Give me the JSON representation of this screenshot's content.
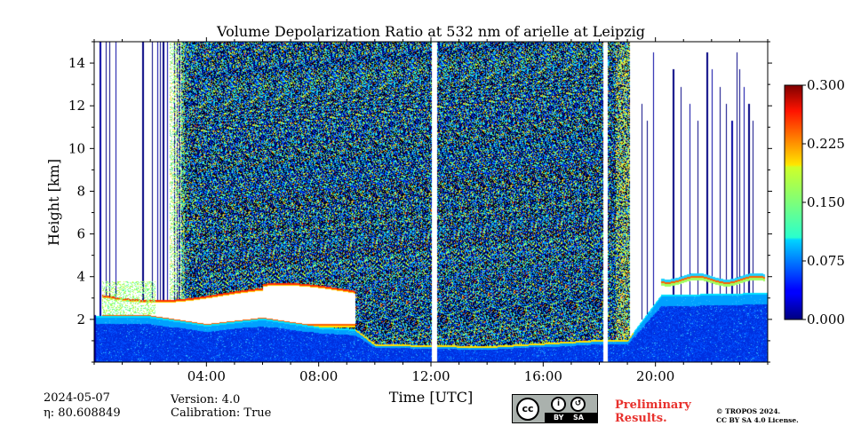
{
  "chart_data": {
    "type": "heatmap",
    "title": "Volume Depolarization Ratio at 532 nm of arielle at Leipzig",
    "xlabel": "Time [UTC]",
    "ylabel": "Height [km]",
    "xlim_hours": [
      0,
      24
    ],
    "ylim_km": [
      0,
      15
    ],
    "x_ticks": [
      {
        "value": 4,
        "label": "04:00"
      },
      {
        "value": 8,
        "label": "08:00"
      },
      {
        "value": 12,
        "label": "12:00"
      },
      {
        "value": 16,
        "label": "16:00"
      },
      {
        "value": 20,
        "label": "20:00"
      }
    ],
    "y_ticks": [
      {
        "value": 2,
        "label": "2"
      },
      {
        "value": 4,
        "label": "4"
      },
      {
        "value": 6,
        "label": "6"
      },
      {
        "value": 8,
        "label": "8"
      },
      {
        "value": 10,
        "label": "10"
      },
      {
        "value": 12,
        "label": "12"
      },
      {
        "value": 14,
        "label": "14"
      }
    ],
    "colorbar": {
      "colormap": "jet",
      "range": [
        0.0,
        0.3
      ],
      "ticks": [
        {
          "value": 0.0,
          "label": "0.000"
        },
        {
          "value": 0.075,
          "label": "0.075"
        },
        {
          "value": 0.15,
          "label": "0.150"
        },
        {
          "value": 0.225,
          "label": "0.225"
        },
        {
          "value": 0.3,
          "label": "0.300"
        }
      ]
    },
    "data_gaps_hours": [
      [
        12.05,
        12.2
      ],
      [
        18.15,
        18.3
      ]
    ],
    "noise_region": {
      "start_hour": 3.1,
      "end_hour": 19.1,
      "description_color": "mixed dark-blue/cyan/yellow speckle"
    },
    "boundary_layer": [
      {
        "hour": 0.3,
        "top_km": 2.1,
        "depol": 0.04
      },
      {
        "hour": 2.0,
        "top_km": 2.1,
        "depol": 0.04
      },
      {
        "hour": 4.0,
        "top_km": 1.7,
        "depol": 0.04
      },
      {
        "hour": 6.0,
        "top_km": 2.0,
        "depol": 0.04
      },
      {
        "hour": 8.0,
        "top_km": 1.6,
        "depol": 0.04
      },
      {
        "hour": 9.3,
        "top_km": 1.5,
        "depol": 0.04
      },
      {
        "hour": 10.0,
        "top_km": 0.8,
        "depol": 0.03
      },
      {
        "hour": 14.0,
        "top_km": 0.7,
        "depol": 0.03
      },
      {
        "hour": 18.0,
        "top_km": 1.0,
        "depol": 0.03
      },
      {
        "hour": 19.0,
        "top_km": 1.0,
        "depol": 0.03
      },
      {
        "hour": 20.2,
        "top_km": 3.1,
        "depol": 0.03
      },
      {
        "hour": 23.9,
        "top_km": 3.2,
        "depol": 0.03
      }
    ],
    "aerosol_layer_morning": {
      "start_hour": 0.3,
      "end_hour": 9.3,
      "bottom_km": 1.7,
      "top_km": 3.2,
      "depol": ">0.3 (white/saturated)"
    },
    "aerosol_layer_evening": {
      "start_hour": 20.2,
      "end_hour": 23.9,
      "height_km": 3.9,
      "depol": 0.22
    }
  },
  "footer": {
    "date": "2024-05-07",
    "eta": "η: 80.608849",
    "version": "Version: 4.0",
    "calibration": "Calibration: True",
    "preliminary": [
      "Preliminary",
      "Results."
    ],
    "license": [
      "© TROPOS 2024.",
      "CC BY SA 4.0 License."
    ],
    "cc_badge": {
      "by": "BY",
      "sa": "SA",
      "cc": "cc"
    }
  },
  "colors": {
    "preliminary_text": "#e8312d",
    "badge_bg": "#aab1ad"
  }
}
